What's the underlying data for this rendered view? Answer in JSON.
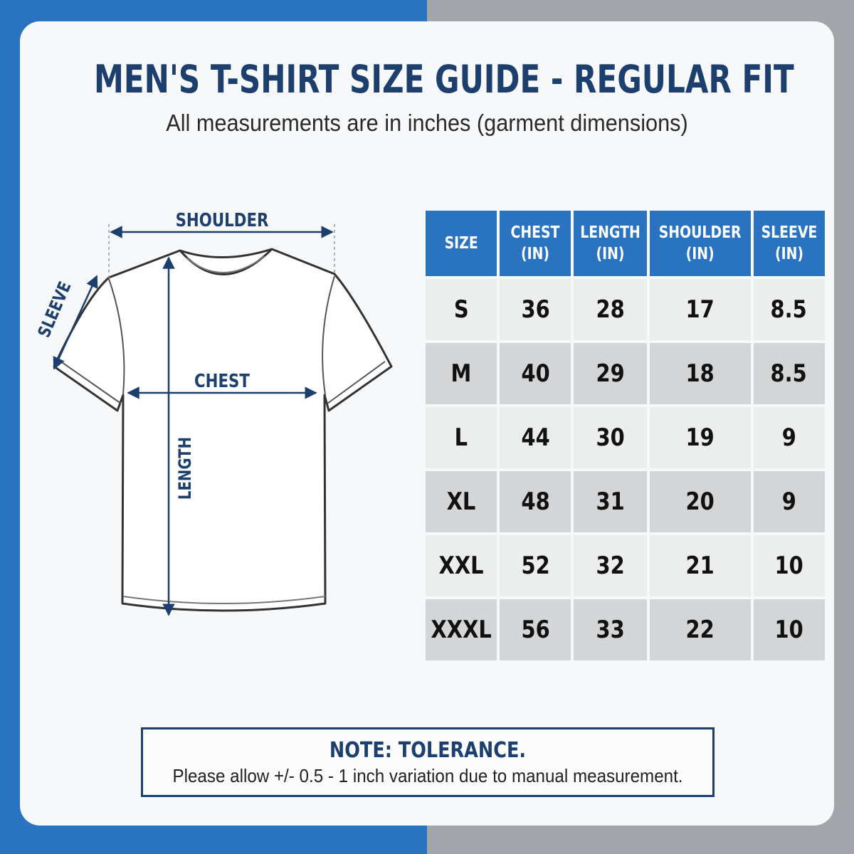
{
  "header": {
    "title": "MEN'S T-SHIRT SIZE GUIDE - REGULAR FIT",
    "subtitle": "All measurements are in inches (garment dimensions)"
  },
  "diagram": {
    "labels": {
      "shoulder": "SHOULDER",
      "sleeve": "SLEEVE",
      "chest": "CHEST",
      "length": "LENGTH"
    },
    "colors": {
      "accent": "#1d3f6d",
      "outline": "#333333"
    }
  },
  "table": {
    "headers": [
      {
        "line1": "SIZE",
        "line2": ""
      },
      {
        "line1": "CHEST",
        "line2": "(IN)"
      },
      {
        "line1": "LENGTH",
        "line2": "(IN)"
      },
      {
        "line1": "SHOULDER",
        "line2": "(IN)"
      },
      {
        "line1": "SLEEVE",
        "line2": "(IN)"
      }
    ],
    "rows": [
      [
        "S",
        "36",
        "28",
        "17",
        "8.5"
      ],
      [
        "M",
        "40",
        "29",
        "18",
        "8.5"
      ],
      [
        "L",
        "44",
        "30",
        "19",
        "9"
      ],
      [
        "XL",
        "48",
        "31",
        "20",
        "9"
      ],
      [
        "XXL",
        "52",
        "32",
        "21",
        "10"
      ],
      [
        "XXXL",
        "56",
        "33",
        "22",
        "10"
      ]
    ],
    "colors": {
      "header_bg": "#2a73c0",
      "row_light": "#eceded",
      "row_dark": "#d3d5d7"
    }
  },
  "note": {
    "title": "NOTE: TOLERANCE.",
    "body": "Please allow +/- 0.5 - 1 inch variation due to manual measurement."
  }
}
